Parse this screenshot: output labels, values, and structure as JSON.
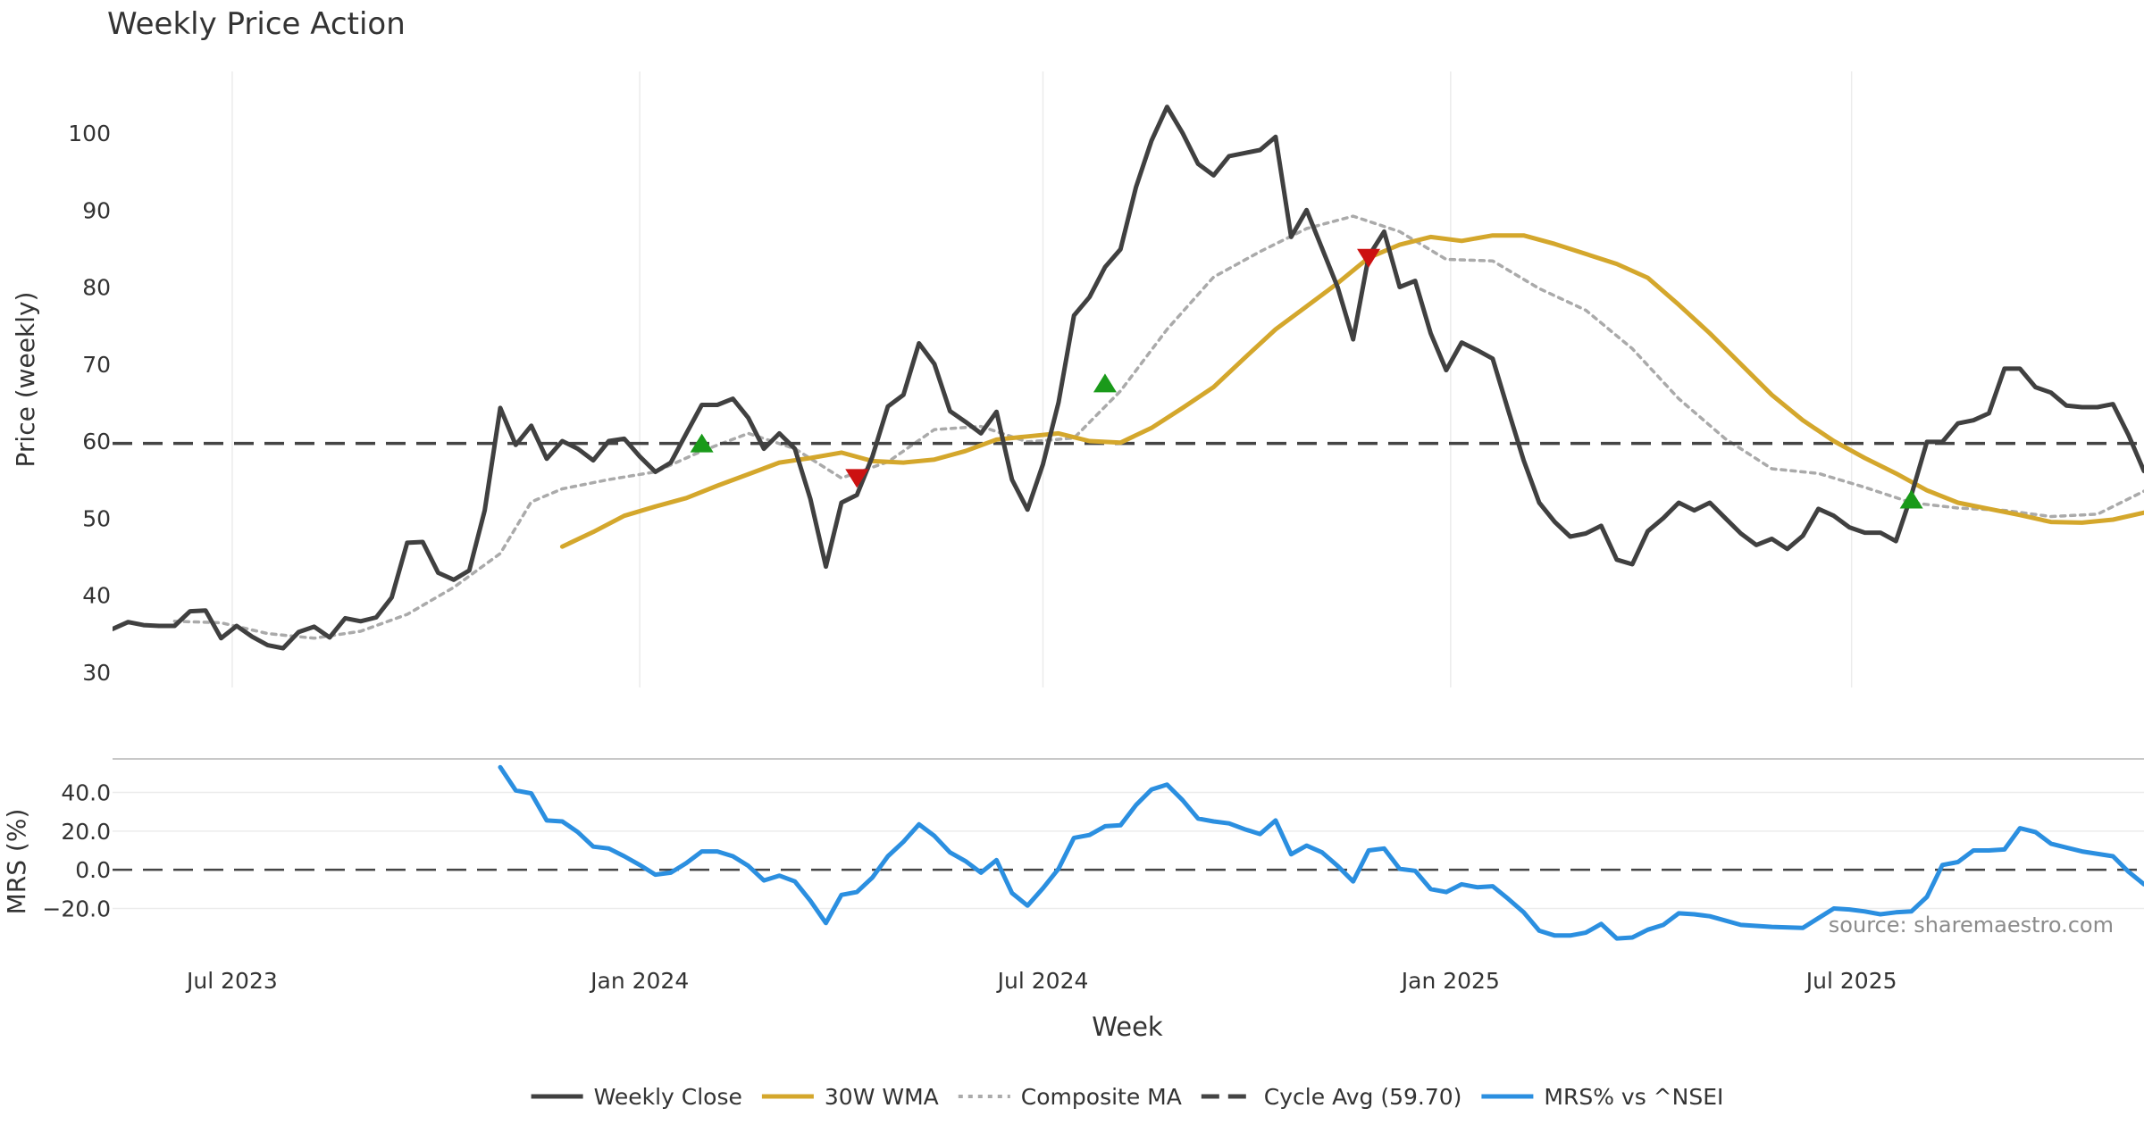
{
  "chart_data": [
    {
      "type": "line",
      "title": "Weekly Price Action",
      "ylabel": "Price (weekly)",
      "ylim": [
        28,
        108
      ],
      "yticks": [
        30,
        40,
        50,
        60,
        70,
        80,
        90,
        100
      ],
      "grid": "vertical",
      "x_start": "2023-05-08",
      "x_end": "2025-11-10",
      "series": [
        {
          "name": "Weekly Close",
          "color": "#404040",
          "style": "solid",
          "x": [
            "2023-05-08",
            "2023-05-15",
            "2023-05-22",
            "2023-05-29",
            "2023-06-05",
            "2023-06-12",
            "2023-06-19",
            "2023-06-26",
            "2023-07-03",
            "2023-07-10",
            "2023-07-17",
            "2023-07-24",
            "2023-07-31",
            "2023-08-07",
            "2023-08-14",
            "2023-08-21",
            "2023-08-28",
            "2023-09-04",
            "2023-09-11",
            "2023-09-18",
            "2023-09-25",
            "2023-10-02",
            "2023-10-09",
            "2023-10-16",
            "2023-10-23",
            "2023-10-30",
            "2023-11-06",
            "2023-11-13",
            "2023-11-20",
            "2023-11-27",
            "2023-12-04",
            "2023-12-11",
            "2023-12-18",
            "2023-12-25",
            "2024-01-01",
            "2024-01-08",
            "2024-01-15",
            "2024-01-22",
            "2024-01-29",
            "2024-02-05",
            "2024-02-12",
            "2024-02-19",
            "2024-02-26",
            "2024-03-04",
            "2024-03-11",
            "2024-03-18",
            "2024-03-25",
            "2024-04-01",
            "2024-04-08",
            "2024-04-15",
            "2024-04-22",
            "2024-04-29",
            "2024-05-06",
            "2024-05-13",
            "2024-05-20",
            "2024-05-27",
            "2024-06-03",
            "2024-06-10",
            "2024-06-17",
            "2024-06-24",
            "2024-07-01",
            "2024-07-08",
            "2024-07-15",
            "2024-07-22",
            "2024-07-29",
            "2024-08-05",
            "2024-08-12",
            "2024-08-19",
            "2024-08-26",
            "2024-09-02",
            "2024-09-09",
            "2024-09-16",
            "2024-09-23",
            "2024-09-30",
            "2024-10-07",
            "2024-10-14",
            "2024-10-21",
            "2024-10-28",
            "2024-11-04",
            "2024-11-11",
            "2024-11-18",
            "2024-11-25",
            "2024-12-02",
            "2024-12-09",
            "2024-12-16",
            "2024-12-23",
            "2024-12-30",
            "2025-01-06",
            "2025-01-13",
            "2025-01-20",
            "2025-01-27",
            "2025-02-03",
            "2025-02-10",
            "2025-02-17",
            "2025-02-24",
            "2025-03-03",
            "2025-03-10",
            "2025-03-17",
            "2025-03-24",
            "2025-03-31",
            "2025-04-07",
            "2025-04-14",
            "2025-04-21",
            "2025-04-28",
            "2025-05-05",
            "2025-05-12",
            "2025-05-19",
            "2025-05-26",
            "2025-06-02",
            "2025-06-09",
            "2025-06-16",
            "2025-06-23",
            "2025-06-30",
            "2025-07-07",
            "2025-07-14",
            "2025-07-21",
            "2025-07-28",
            "2025-08-04",
            "2025-08-11",
            "2025-08-18",
            "2025-08-25",
            "2025-09-01",
            "2025-09-08",
            "2025-09-15",
            "2025-09-22",
            "2025-09-29",
            "2025-10-06",
            "2025-10-13",
            "2025-10-20",
            "2025-10-27",
            "2025-11-03",
            "2025-11-10"
          ],
          "values": [
            35.6,
            36.5,
            36.1,
            36.0,
            36.0,
            37.9,
            38.0,
            34.4,
            36.0,
            34.6,
            33.5,
            33.1,
            35.2,
            35.9,
            34.5,
            37.0,
            36.6,
            37.1,
            39.7,
            46.8,
            46.9,
            42.9,
            42.0,
            43.2,
            51.0,
            64.3,
            59.5,
            62.0,
            57.7,
            60.0,
            59.0,
            57.5,
            60.0,
            60.3,
            58.0,
            56.0,
            57.2,
            61.0,
            64.7,
            64.7,
            65.5,
            63.0,
            59.0,
            61.0,
            59.0,
            52.5,
            43.7,
            52.0,
            53.0,
            58.0,
            64.5,
            66.0,
            72.7,
            70.0,
            63.9,
            62.5,
            61.0,
            63.8,
            55.0,
            51.1,
            57.0,
            65.0,
            76.3,
            78.7,
            82.6,
            84.9,
            93.0,
            99.0,
            103.4,
            100.0,
            96.0,
            94.5,
            97.0,
            97.4,
            97.8,
            99.5,
            86.5,
            90.0,
            85.0,
            80.0,
            73.2,
            84.0,
            87.2,
            80.0,
            80.8,
            74.0,
            69.2,
            72.8,
            71.8,
            70.7,
            64.0,
            57.5,
            52.0,
            49.5,
            47.6,
            48.0,
            49.0,
            44.6,
            44.0,
            48.3,
            50.0,
            52.0,
            51.0,
            52.0,
            50.0,
            48.0,
            46.5,
            47.3,
            46.0,
            47.7,
            51.2,
            50.3,
            48.8,
            48.1,
            48.1,
            47.0,
            53.0,
            59.9,
            59.9,
            62.3,
            62.7,
            63.6,
            69.4,
            69.4,
            67.0,
            66.3,
            64.6,
            64.4,
            64.4,
            64.8,
            60.8,
            56.1
          ]
        },
        {
          "name": "30W WMA",
          "color": "#d4a72c",
          "style": "solid",
          "x": [
            "2023-11-27",
            "2023-12-11",
            "2023-12-25",
            "2024-01-08",
            "2024-01-22",
            "2024-02-05",
            "2024-02-19",
            "2024-03-04",
            "2024-03-18",
            "2024-04-01",
            "2024-04-15",
            "2024-04-29",
            "2024-05-13",
            "2024-05-27",
            "2024-06-10",
            "2024-06-24",
            "2024-07-08",
            "2024-07-22",
            "2024-08-05",
            "2024-08-19",
            "2024-09-02",
            "2024-09-16",
            "2024-09-30",
            "2024-10-14",
            "2024-10-28",
            "2024-11-11",
            "2024-11-25",
            "2024-12-09",
            "2024-12-23",
            "2025-01-06",
            "2025-01-20",
            "2025-02-03",
            "2025-02-17",
            "2025-03-03",
            "2025-03-17",
            "2025-03-31",
            "2025-04-14",
            "2025-04-28",
            "2025-05-12",
            "2025-05-26",
            "2025-06-09",
            "2025-06-23",
            "2025-07-07",
            "2025-07-21",
            "2025-08-04",
            "2025-08-18",
            "2025-09-01",
            "2025-09-15",
            "2025-09-29",
            "2025-10-13",
            "2025-10-27",
            "2025-11-10"
          ],
          "values": [
            46.3,
            48.2,
            50.3,
            51.5,
            52.6,
            54.2,
            55.7,
            57.2,
            57.8,
            58.5,
            57.4,
            57.2,
            57.6,
            58.7,
            60.2,
            60.6,
            61.0,
            60.0,
            59.8,
            61.7,
            64.3,
            67.0,
            70.8,
            74.5,
            77.5,
            80.5,
            83.8,
            85.5,
            86.5,
            86.0,
            86.7,
            86.7,
            85.6,
            84.3,
            83.0,
            81.2,
            77.7,
            74.0,
            70.0,
            66.0,
            62.7,
            60.0,
            57.8,
            55.8,
            53.6,
            52.0,
            51.2,
            50.4,
            49.5,
            49.4,
            49.8,
            50.7
          ]
        },
        {
          "name": "Composite MA",
          "color": "#aaaaaa",
          "style": "dotted",
          "x": [
            "2023-06-05",
            "2023-06-26",
            "2023-07-17",
            "2023-08-07",
            "2023-08-28",
            "2023-09-18",
            "2023-10-09",
            "2023-10-30",
            "2023-11-13",
            "2023-11-27",
            "2023-12-18",
            "2024-01-08",
            "2024-01-29",
            "2024-02-19",
            "2024-03-11",
            "2024-04-01",
            "2024-04-22",
            "2024-05-13",
            "2024-06-03",
            "2024-06-24",
            "2024-07-15",
            "2024-08-05",
            "2024-08-26",
            "2024-09-16",
            "2024-10-07",
            "2024-10-28",
            "2024-11-18",
            "2024-12-09",
            "2024-12-30",
            "2025-01-20",
            "2025-02-10",
            "2025-03-03",
            "2025-03-24",
            "2025-04-14",
            "2025-05-05",
            "2025-05-26",
            "2025-06-16",
            "2025-07-07",
            "2025-07-28",
            "2025-08-18",
            "2025-09-08",
            "2025-09-29",
            "2025-10-20",
            "2025-11-10"
          ],
          "values": [
            36.6,
            36.4,
            35.0,
            34.4,
            35.3,
            37.5,
            41.0,
            45.4,
            52.1,
            53.8,
            55.0,
            56.0,
            58.7,
            61.0,
            59.0,
            55.2,
            57.3,
            61.5,
            61.9,
            59.9,
            60.4,
            66.5,
            74.5,
            81.3,
            84.6,
            87.6,
            89.2,
            87.2,
            83.6,
            83.4,
            79.8,
            77.0,
            72.0,
            65.5,
            60.3,
            56.4,
            55.8,
            54.0,
            52.0,
            51.3,
            51.0,
            50.2,
            50.5,
            53.5
          ]
        },
        {
          "name": "Cycle Avg (59.70)",
          "color": "#444444",
          "style": "dashed",
          "constant": 59.7
        }
      ],
      "markers": [
        {
          "type": "buy",
          "shape": "triangle-up",
          "color": "#1a9a1a",
          "x": "2024-01-29",
          "y": 59.7
        },
        {
          "type": "sell",
          "shape": "triangle-down",
          "color": "#cc1111",
          "x": "2024-04-08",
          "y": 55.2
        },
        {
          "type": "buy",
          "shape": "triangle-up",
          "color": "#1a9a1a",
          "x": "2024-07-29",
          "y": 67.5
        },
        {
          "type": "sell",
          "shape": "triangle-down",
          "color": "#cc1111",
          "x": "2024-11-25",
          "y": 83.8
        },
        {
          "type": "buy",
          "shape": "triangle-up",
          "color": "#1a9a1a",
          "x": "2025-07-28",
          "y": 52.4
        }
      ]
    },
    {
      "type": "line",
      "ylabel": "MRS (%)",
      "xlabel": "Week",
      "ylim": [
        -35,
        55
      ],
      "yticks": [
        40,
        20,
        0,
        -20
      ],
      "ytick_labels": [
        "40.0",
        "20.0",
        "0.0",
        "−20.0"
      ],
      "xticks": [
        {
          "date": "2023-07-01",
          "label": "Jul 2023"
        },
        {
          "date": "2024-01-01",
          "label": "Jan 2024"
        },
        {
          "date": "2024-07-01",
          "label": "Jul 2024"
        },
        {
          "date": "2025-01-01",
          "label": "Jan 2025"
        },
        {
          "date": "2025-07-01",
          "label": "Jul 2025"
        }
      ],
      "zero_line": {
        "color": "#444444",
        "style": "dashed",
        "y": 0
      },
      "annotation": "source: sharemaestro.com",
      "series": [
        {
          "name": "MRS% vs ^NSEI",
          "color": "#2b8fe0",
          "style": "solid",
          "x": [
            "2023-10-30",
            "2023-11-06",
            "2023-11-13",
            "2023-11-20",
            "2023-11-27",
            "2023-12-04",
            "2023-12-11",
            "2023-12-18",
            "2023-12-25",
            "2024-01-01",
            "2024-01-08",
            "2024-01-15",
            "2024-01-22",
            "2024-01-29",
            "2024-02-05",
            "2024-02-12",
            "2024-02-19",
            "2024-02-26",
            "2024-03-04",
            "2024-03-11",
            "2024-03-18",
            "2024-03-25",
            "2024-04-01",
            "2024-04-08",
            "2024-04-15",
            "2024-04-22",
            "2024-04-29",
            "2024-05-06",
            "2024-05-13",
            "2024-05-20",
            "2024-05-27",
            "2024-06-03",
            "2024-06-10",
            "2024-06-17",
            "2024-06-24",
            "2024-07-01",
            "2024-07-08",
            "2024-07-15",
            "2024-07-22",
            "2024-07-29",
            "2024-08-05",
            "2024-08-12",
            "2024-08-19",
            "2024-08-26",
            "2024-09-02",
            "2024-09-09",
            "2024-09-16",
            "2024-09-23",
            "2024-09-30",
            "2024-10-07",
            "2024-10-14",
            "2024-10-21",
            "2024-10-28",
            "2024-11-04",
            "2024-11-11",
            "2024-11-18",
            "2024-11-25",
            "2024-12-02",
            "2024-12-09",
            "2024-12-16",
            "2024-12-23",
            "2024-12-30",
            "2025-01-06",
            "2025-01-13",
            "2025-01-20",
            "2025-01-27",
            "2025-02-03",
            "2025-02-10",
            "2025-02-17",
            "2025-02-24",
            "2025-03-03",
            "2025-03-10",
            "2025-03-17",
            "2025-03-24",
            "2025-03-31",
            "2025-04-07",
            "2025-04-14",
            "2025-04-21",
            "2025-04-28",
            "2025-05-12",
            "2025-05-26",
            "2025-06-09",
            "2025-06-23",
            "2025-06-30",
            "2025-07-07",
            "2025-07-14",
            "2025-07-21",
            "2025-07-28",
            "2025-08-04",
            "2025-08-11",
            "2025-08-18",
            "2025-08-25",
            "2025-09-01",
            "2025-09-08",
            "2025-09-15",
            "2025-09-22",
            "2025-09-29",
            "2025-10-06",
            "2025-10-13",
            "2025-10-27",
            "2025-11-03",
            "2025-11-10"
          ],
          "values": [
            53.0,
            41.0,
            39.5,
            25.5,
            25.0,
            19.5,
            12.0,
            11.0,
            7.0,
            2.5,
            -2.5,
            -1.5,
            3.5,
            9.5,
            9.5,
            7.0,
            2.0,
            -5.5,
            -3.0,
            -6.0,
            -16.0,
            -27.5,
            -13.0,
            -11.5,
            -4.0,
            7.0,
            14.5,
            23.5,
            17.5,
            9.0,
            4.5,
            -1.5,
            5.0,
            -12.0,
            -18.5,
            -9.5,
            0.5,
            16.5,
            18.0,
            22.5,
            23.0,
            33.5,
            41.5,
            44.0,
            36.0,
            26.5,
            25.0,
            24.0,
            21.0,
            18.5,
            25.5,
            8.0,
            12.5,
            9.0,
            2.0,
            -6.0,
            10.0,
            11.0,
            0.5,
            -0.5,
            -10.0,
            -11.5,
            -7.5,
            -9.0,
            -8.5,
            -15.0,
            -22.0,
            -31.5,
            -34.0,
            -34.0,
            -32.5,
            -28.0,
            -35.5,
            -35.0,
            -31.0,
            -28.5,
            -22.5,
            -23.0,
            -24.0,
            -28.5,
            -29.5,
            -30.0,
            -20.0,
            -20.5,
            -21.5,
            -23.0,
            -22.0,
            -21.5,
            -14.0,
            2.5,
            4.0,
            10.0,
            10.0,
            10.5,
            21.5,
            19.5,
            13.5,
            11.5,
            9.5,
            7.0,
            -1.0,
            -7.5
          ]
        }
      ]
    }
  ],
  "legend": [
    {
      "label": "Weekly Close",
      "color": "#404040",
      "style": "solid"
    },
    {
      "label": "30W WMA",
      "color": "#d4a72c",
      "style": "solid"
    },
    {
      "label": "Composite MA",
      "color": "#aaaaaa",
      "style": "dotted"
    },
    {
      "label": "Cycle Avg (59.70)",
      "color": "#444444",
      "style": "dashed"
    },
    {
      "label": "MRS% vs ^NSEI",
      "color": "#2b8fe0",
      "style": "solid"
    }
  ],
  "legend_placement": "bottom-center"
}
